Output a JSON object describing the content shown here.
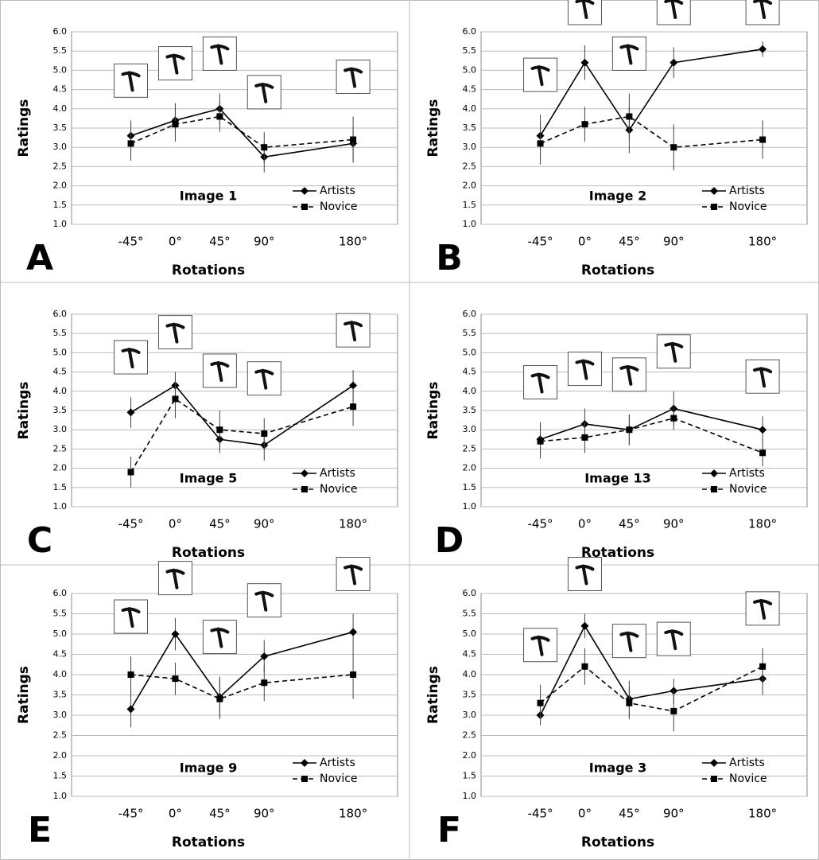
{
  "chart_data": [
    {
      "type": "line",
      "letter": "A",
      "title": "Image 1",
      "xlabel": "Rotations",
      "ylabel": "Ratings",
      "x": [
        -45,
        0,
        45,
        90,
        180
      ],
      "xticks": [
        {
          "value": -45,
          "label": "-45°"
        },
        {
          "value": 0,
          "label": "0°"
        },
        {
          "value": 45,
          "label": "45°"
        },
        {
          "value": 90,
          "label": "90°"
        },
        {
          "value": 180,
          "label": "180°"
        }
      ],
      "xlim": [
        -105,
        225
      ],
      "ylim": [
        1,
        6
      ],
      "yticks": [
        {
          "value": 1,
          "label": "1.0"
        },
        1.5,
        {
          "value": 2,
          "label": "2.0"
        },
        2.5,
        {
          "value": 3,
          "label": "3.0"
        },
        3.5,
        {
          "value": 4,
          "label": "4.0"
        },
        4.5,
        {
          "value": 5,
          "label": "5.0"
        },
        5.5,
        {
          "value": 6,
          "label": "6.0"
        }
      ],
      "grid": true,
      "legend": "lower right",
      "series": [
        {
          "name": "Artists",
          "color": "#000000",
          "linestyle": "solid",
          "marker": "diamond",
          "values": [
            3.3,
            3.7,
            4.0,
            2.75,
            3.1
          ],
          "errors": [
            0.4,
            0.45,
            0.4,
            0.4,
            0.45
          ]
        },
        {
          "name": "Novice",
          "color": "#000000",
          "linestyle": "dashed",
          "marker": "square",
          "values": [
            3.1,
            3.6,
            3.8,
            3.0,
            3.2
          ],
          "errors": [
            0.45,
            0.45,
            0.4,
            0.4,
            0.6
          ]
        }
      ]
    },
    {
      "type": "line",
      "letter": "B",
      "title": "Image 2",
      "xlabel": "Rotations",
      "ylabel": "Ratings",
      "x": [
        -45,
        0,
        45,
        90,
        180
      ],
      "xticks": [
        {
          "value": -45,
          "label": "-45°"
        },
        {
          "value": 0,
          "label": "0°"
        },
        {
          "value": 45,
          "label": "45°"
        },
        {
          "value": 90,
          "label": "90°"
        },
        {
          "value": 180,
          "label": "180°"
        }
      ],
      "xlim": [
        -105,
        225
      ],
      "ylim": [
        1,
        6
      ],
      "yticks": [
        {
          "value": 1,
          "label": "1.0"
        },
        1.5,
        {
          "value": 2,
          "label": "2.0"
        },
        2.5,
        {
          "value": 3,
          "label": "3.0"
        },
        3.5,
        {
          "value": 4,
          "label": "4.0"
        },
        4.5,
        {
          "value": 5,
          "label": "5.0"
        },
        5.5,
        {
          "value": 6,
          "label": "6.0"
        }
      ],
      "grid": true,
      "legend": "lower right",
      "series": [
        {
          "name": "Artists",
          "color": "#000000",
          "linestyle": "solid",
          "marker": "diamond",
          "values": [
            3.3,
            5.2,
            3.45,
            5.2,
            5.55
          ],
          "errors": [
            0.55,
            0.45,
            0.6,
            0.4,
            0.2
          ]
        },
        {
          "name": "Novice",
          "color": "#000000",
          "linestyle": "dashed",
          "marker": "square",
          "values": [
            3.1,
            3.6,
            3.8,
            3.0,
            3.2
          ],
          "errors": [
            0.55,
            0.45,
            0.6,
            0.6,
            0.5
          ]
        }
      ]
    },
    {
      "type": "line",
      "letter": "C",
      "title": "Image 5",
      "xlabel": "Rotations",
      "ylabel": "Ratings",
      "x": [
        -45,
        0,
        45,
        90,
        180
      ],
      "xticks": [
        {
          "value": -45,
          "label": "-45°"
        },
        {
          "value": 0,
          "label": "0°"
        },
        {
          "value": 45,
          "label": "45°"
        },
        {
          "value": 90,
          "label": "90°"
        },
        {
          "value": 180,
          "label": "180°"
        }
      ],
      "xlim": [
        -105,
        225
      ],
      "ylim": [
        1,
        6
      ],
      "yticks": [
        {
          "value": 1,
          "label": "1.0"
        },
        1.5,
        {
          "value": 2,
          "label": "2.0"
        },
        2.5,
        {
          "value": 3,
          "label": "3.0"
        },
        3.5,
        {
          "value": 4,
          "label": "4.0"
        },
        4.5,
        {
          "value": 5,
          "label": "5.0"
        },
        5.5,
        {
          "value": 6,
          "label": "6.0"
        }
      ],
      "grid": true,
      "legend": "lower right",
      "series": [
        {
          "name": "Artists",
          "color": "#000000",
          "linestyle": "solid",
          "marker": "diamond",
          "values": [
            3.45,
            4.15,
            2.75,
            2.6,
            4.15
          ],
          "errors": [
            0.4,
            0.35,
            0.35,
            0.4,
            0.4
          ]
        },
        {
          "name": "Novice",
          "color": "#000000",
          "linestyle": "dashed",
          "marker": "square",
          "values": [
            1.9,
            3.8,
            3.0,
            2.9,
            3.6
          ],
          "errors": [
            0.4,
            0.5,
            0.5,
            0.4,
            0.5
          ]
        }
      ]
    },
    {
      "type": "line",
      "letter": "D",
      "title": "Image 13",
      "xlabel": "Rotations",
      "ylabel": "Ratings",
      "x": [
        -45,
        0,
        45,
        90,
        180
      ],
      "xticks": [
        {
          "value": -45,
          "label": "-45°"
        },
        {
          "value": 0,
          "label": "0°"
        },
        {
          "value": 45,
          "label": "45°"
        },
        {
          "value": 90,
          "label": "90°"
        },
        {
          "value": 180,
          "label": "180°"
        }
      ],
      "xlim": [
        -105,
        225
      ],
      "ylim": [
        1,
        6
      ],
      "yticks": [
        {
          "value": 1,
          "label": "1.0"
        },
        1.5,
        {
          "value": 2,
          "label": "2.0"
        },
        2.5,
        {
          "value": 3,
          "label": "3.0"
        },
        3.5,
        {
          "value": 4,
          "label": "4.0"
        },
        4.5,
        {
          "value": 5,
          "label": "5.0"
        },
        5.5,
        {
          "value": 6,
          "label": "6.0"
        }
      ],
      "grid": true,
      "legend": "lower right",
      "series": [
        {
          "name": "Artists",
          "color": "#000000",
          "linestyle": "solid",
          "marker": "diamond",
          "values": [
            2.75,
            3.15,
            3.0,
            3.55,
            3.0
          ],
          "errors": [
            0.45,
            0.4,
            0.4,
            0.45,
            0.35
          ]
        },
        {
          "name": "Novice",
          "color": "#000000",
          "linestyle": "dashed",
          "marker": "square",
          "values": [
            2.7,
            2.8,
            3.0,
            3.3,
            2.4
          ],
          "errors": [
            0.45,
            0.4,
            0.4,
            0.3,
            0.35
          ]
        }
      ]
    },
    {
      "type": "line",
      "letter": "E",
      "title": "Image 9",
      "xlabel": "Rotations",
      "ylabel": "Ratings",
      "x": [
        -45,
        0,
        45,
        90,
        180
      ],
      "xticks": [
        {
          "value": -45,
          "label": "-45°"
        },
        {
          "value": 0,
          "label": "0°"
        },
        {
          "value": 45,
          "label": "45°"
        },
        {
          "value": 90,
          "label": "90°"
        },
        {
          "value": 180,
          "label": "180°"
        }
      ],
      "xlim": [
        -105,
        225
      ],
      "ylim": [
        1,
        6
      ],
      "yticks": [
        {
          "value": 1,
          "label": "1.0"
        },
        1.5,
        {
          "value": 2,
          "label": "2.0"
        },
        2.5,
        {
          "value": 3,
          "label": "3.0"
        },
        3.5,
        {
          "value": 4,
          "label": "4.0"
        },
        4.5,
        {
          "value": 5,
          "label": "5.0"
        },
        5.5,
        {
          "value": 6,
          "label": "6.0"
        }
      ],
      "grid": true,
      "legend": "lower right",
      "series": [
        {
          "name": "Artists",
          "color": "#000000",
          "linestyle": "solid",
          "marker": "diamond",
          "values": [
            3.15,
            5.0,
            3.45,
            4.45,
            5.05
          ],
          "errors": [
            0.45,
            0.4,
            0.5,
            0.4,
            0.45
          ]
        },
        {
          "name": "Novice",
          "color": "#000000",
          "linestyle": "dashed",
          "marker": "square",
          "values": [
            4.0,
            3.9,
            3.4,
            3.8,
            4.0
          ],
          "errors": [
            0.45,
            0.4,
            0.5,
            0.45,
            0.6
          ]
        }
      ]
    },
    {
      "type": "line",
      "letter": "F",
      "title": "Image 3",
      "xlabel": "Rotations",
      "ylabel": "Ratings",
      "x": [
        -45,
        0,
        45,
        90,
        180
      ],
      "xticks": [
        {
          "value": -45,
          "label": "-45°"
        },
        {
          "value": 0,
          "label": "0°"
        },
        {
          "value": 45,
          "label": "45°"
        },
        {
          "value": 90,
          "label": "90°"
        },
        {
          "value": 180,
          "label": "180°"
        }
      ],
      "xlim": [
        -105,
        225
      ],
      "ylim": [
        1,
        6
      ],
      "yticks": [
        {
          "value": 1,
          "label": "1.0"
        },
        1.5,
        {
          "value": 2,
          "label": "2.0"
        },
        2.5,
        {
          "value": 3,
          "label": "3.0"
        },
        3.5,
        {
          "value": 4,
          "label": "4.0"
        },
        4.5,
        {
          "value": 5,
          "label": "5.0"
        },
        5.5,
        {
          "value": 6,
          "label": "6.0"
        }
      ],
      "grid": true,
      "legend": "lower right",
      "series": [
        {
          "name": "Artists",
          "color": "#000000",
          "linestyle": "solid",
          "marker": "diamond",
          "values": [
            3.0,
            5.2,
            3.4,
            3.6,
            3.9
          ],
          "errors": [
            0.25,
            0.3,
            0.45,
            0.3,
            0.4
          ]
        },
        {
          "name": "Novice",
          "color": "#000000",
          "linestyle": "dashed",
          "marker": "square",
          "values": [
            3.3,
            4.2,
            3.3,
            3.1,
            4.2
          ],
          "errors": [
            0.45,
            0.45,
            0.4,
            0.5,
            0.45
          ]
        }
      ]
    }
  ]
}
